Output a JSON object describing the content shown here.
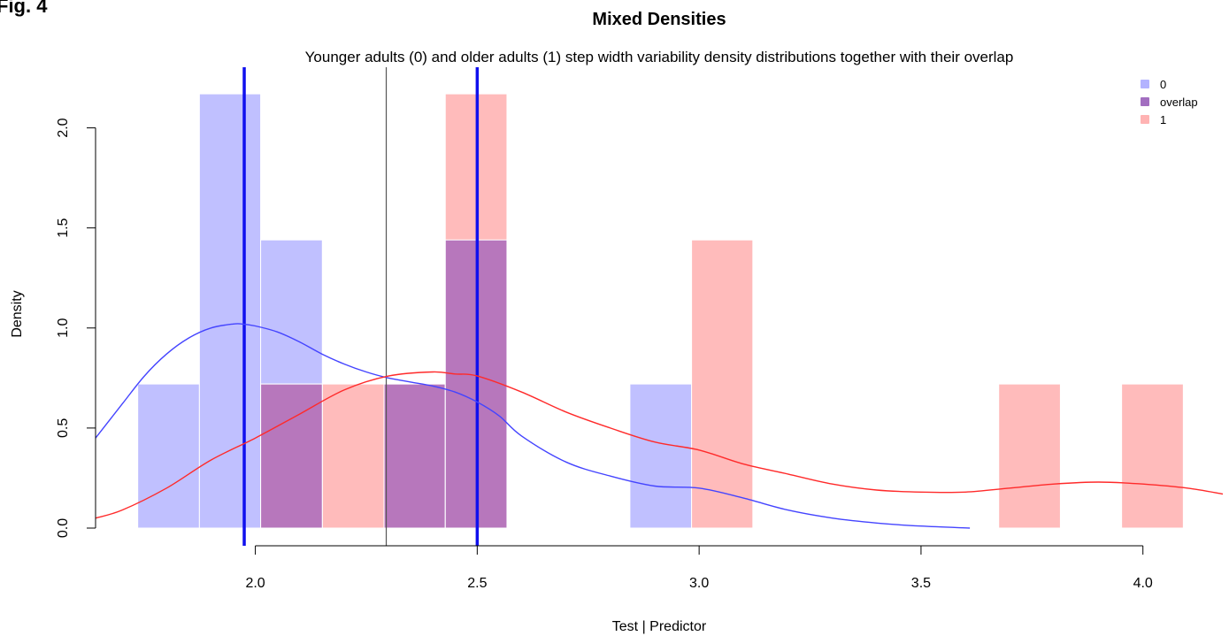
{
  "figure_label": "Fig. 4",
  "chart_data": {
    "type": "bar",
    "title": "Mixed Densities",
    "subtitle": "Younger adults (0) and older adults (1) step width variability density distributions together with their overlap",
    "xlabel": "Test | Predictor",
    "ylabel": "Density",
    "xlim": [
      1.64,
      4.18
    ],
    "ylim": [
      0,
      2.25
    ],
    "x_ticks": [
      "2.0",
      "2.5",
      "3.0",
      "3.5",
      "4.0"
    ],
    "y_ticks": [
      "0.0",
      "0.5",
      "1.0",
      "1.5",
      "2.0"
    ],
    "legend": {
      "position": "top-right",
      "entries": [
        {
          "label": "0",
          "color": "#b3b3ff"
        },
        {
          "label": "overlap",
          "color": "#a26ec0"
        },
        {
          "label": "1",
          "color": "#ffb3b3"
        }
      ]
    },
    "colors": {
      "group0_fill": "rgba(130,130,255,0.5)",
      "group1_fill": "rgba(255,120,120,0.5)",
      "group0_line": "#4444ff",
      "group1_line": "#ff2a2a",
      "mean_line": "#1010ee",
      "cutoff_line": "#555555"
    },
    "series": [
      {
        "name": "0",
        "histogram": [
          {
            "x0": 1.735,
            "x1": 1.874,
            "density": 0.72
          },
          {
            "x0": 1.874,
            "x1": 2.012,
            "density": 2.17
          },
          {
            "x0": 2.012,
            "x1": 2.151,
            "density": 1.44
          },
          {
            "x0": 2.29,
            "x1": 2.428,
            "density": 0.72
          },
          {
            "x0": 2.428,
            "x1": 2.567,
            "density": 1.44
          },
          {
            "x0": 2.844,
            "x1": 2.983,
            "density": 0.72
          }
        ],
        "density_curve": {
          "x": [
            1.64,
            1.7,
            1.75,
            1.8,
            1.85,
            1.9,
            1.95,
            1.97,
            2.0,
            2.05,
            2.1,
            2.15,
            2.2,
            2.25,
            2.3,
            2.35,
            2.4,
            2.45,
            2.5,
            2.55,
            2.6,
            2.7,
            2.8,
            2.9,
            3.0,
            3.1,
            3.2,
            3.3,
            3.4,
            3.5,
            3.61
          ],
          "y": [
            0.45,
            0.62,
            0.76,
            0.87,
            0.95,
            1.0,
            1.02,
            1.02,
            1.01,
            0.98,
            0.93,
            0.87,
            0.82,
            0.78,
            0.75,
            0.73,
            0.71,
            0.68,
            0.63,
            0.56,
            0.46,
            0.33,
            0.26,
            0.21,
            0.2,
            0.15,
            0.09,
            0.05,
            0.025,
            0.01,
            0.0
          ]
        },
        "mean": 1.975
      },
      {
        "name": "1",
        "histogram": [
          {
            "x0": 2.012,
            "x1": 2.151,
            "density": 0.72
          },
          {
            "x0": 2.151,
            "x1": 2.29,
            "density": 0.72
          },
          {
            "x0": 2.29,
            "x1": 2.428,
            "density": 0.72
          },
          {
            "x0": 2.428,
            "x1": 2.567,
            "density": 2.17
          },
          {
            "x0": 2.983,
            "x1": 3.121,
            "density": 1.44
          },
          {
            "x0": 3.675,
            "x1": 3.814,
            "density": 0.72
          },
          {
            "x0": 3.952,
            "x1": 4.091,
            "density": 0.72
          }
        ],
        "density_curve": {
          "x": [
            1.64,
            1.7,
            1.8,
            1.9,
            2.0,
            2.1,
            2.2,
            2.3,
            2.4,
            2.45,
            2.5,
            2.6,
            2.7,
            2.8,
            2.9,
            3.0,
            3.1,
            3.2,
            3.3,
            3.4,
            3.5,
            3.6,
            3.7,
            3.8,
            3.9,
            4.0,
            4.1,
            4.18
          ],
          "y": [
            0.05,
            0.09,
            0.2,
            0.34,
            0.45,
            0.57,
            0.69,
            0.76,
            0.78,
            0.77,
            0.76,
            0.68,
            0.58,
            0.5,
            0.43,
            0.39,
            0.32,
            0.27,
            0.22,
            0.19,
            0.18,
            0.18,
            0.2,
            0.22,
            0.23,
            0.22,
            0.2,
            0.17
          ]
        },
        "mean": 2.5
      }
    ],
    "overlap": [
      {
        "x0": 2.012,
        "x1": 2.151,
        "density": 0.72
      },
      {
        "x0": 2.29,
        "x1": 2.428,
        "density": 0.72
      },
      {
        "x0": 2.428,
        "x1": 2.567,
        "density": 1.44
      }
    ],
    "cutoff": 2.295,
    "grid": false
  }
}
